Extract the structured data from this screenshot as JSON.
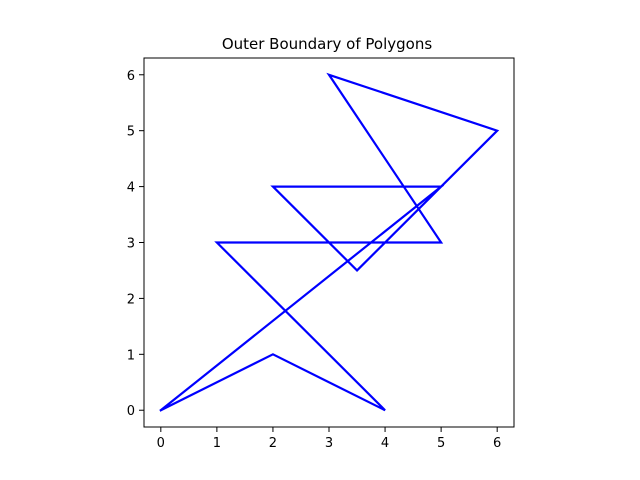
{
  "chart_data": {
    "type": "line",
    "title": "Outer Boundary of Polygons",
    "xlabel": "",
    "ylabel": "",
    "xlim": [
      -0.3,
      6.3
    ],
    "ylim": [
      -0.3,
      6.3
    ],
    "x_ticks": [
      0,
      1,
      2,
      3,
      4,
      5,
      6
    ],
    "y_ticks": [
      0,
      1,
      2,
      3,
      4,
      5,
      6
    ],
    "grid": false,
    "legend": "none",
    "series": [
      {
        "color": "#0000ff",
        "points": [
          [
            0,
            0
          ],
          [
            2,
            1
          ],
          [
            4,
            0
          ],
          [
            1,
            3
          ],
          [
            5,
            3
          ],
          [
            3,
            6
          ],
          [
            6,
            5
          ],
          [
            3.5,
            2.5
          ],
          [
            2,
            4
          ],
          [
            5,
            4
          ],
          [
            0,
            0
          ]
        ]
      }
    ]
  }
}
